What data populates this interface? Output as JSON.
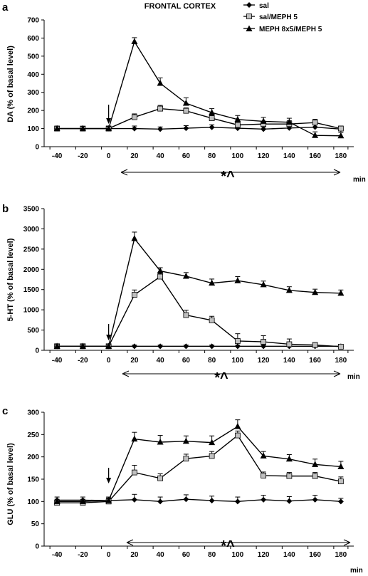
{
  "figure_title": "FRONTAL CORTEX",
  "legend": [
    {
      "label": "sal",
      "marker": "diamond",
      "color": "#000000"
    },
    {
      "label": "sal/MEPH 5",
      "marker": "square",
      "color": "#c0c0c0"
    },
    {
      "label": "MEPH 8x5/MEPH 5",
      "marker": "triangle",
      "color": "#000000"
    }
  ],
  "colors": {
    "line": "#000000",
    "open_marker": "#c0c0c0"
  },
  "chart_data": [
    {
      "type": "line",
      "panel": "a",
      "ylabel": "DA (% of basal level)",
      "xlabel": "min",
      "x": [
        -40,
        -20,
        0,
        20,
        40,
        60,
        80,
        100,
        120,
        140,
        160,
        180
      ],
      "xlim": [
        -50,
        190
      ],
      "ylim": [
        0,
        700
      ],
      "yticks": [
        0,
        100,
        200,
        300,
        400,
        500,
        600,
        700
      ],
      "injection_arrow_x": 0,
      "annotation": "*^",
      "series": [
        {
          "name": "sal",
          "marker": "diamond",
          "values": [
            100,
            100,
            100,
            100,
            97,
            102,
            107,
            102,
            97,
            103,
            108,
            97
          ],
          "errors": [
            13,
            12,
            12,
            14,
            12,
            14,
            14,
            12,
            12,
            12,
            14,
            12
          ]
        },
        {
          "name": "sal/MEPH 5",
          "marker": "square",
          "values": [
            100,
            100,
            100,
            163,
            210,
            198,
            157,
            120,
            125,
            125,
            133,
            100
          ],
          "errors": [
            13,
            12,
            14,
            18,
            18,
            16,
            16,
            16,
            16,
            18,
            18,
            14
          ]
        },
        {
          "name": "MEPH 8x5/MEPH 5",
          "marker": "triangle",
          "values": [
            100,
            100,
            100,
            580,
            350,
            240,
            188,
            150,
            140,
            135,
            62,
            60
          ],
          "errors": [
            13,
            12,
            12,
            22,
            30,
            30,
            22,
            22,
            22,
            22,
            20,
            18
          ]
        }
      ]
    },
    {
      "type": "line",
      "panel": "b",
      "ylabel": "5-HT (% of basal level)",
      "xlabel": "min",
      "x": [
        -40,
        -20,
        0,
        20,
        40,
        60,
        80,
        100,
        120,
        140,
        160,
        180
      ],
      "xlim": [
        -50,
        190
      ],
      "ylim": [
        0,
        3500
      ],
      "yticks": [
        0,
        500,
        1000,
        1500,
        2000,
        2500,
        3000,
        3500
      ],
      "injection_arrow_x": 0,
      "annotation": "*^",
      "series": [
        {
          "name": "sal",
          "marker": "diamond",
          "values": [
            100,
            100,
            100,
            100,
            100,
            100,
            100,
            100,
            100,
            100,
            100,
            100
          ],
          "errors": [
            40,
            40,
            40,
            30,
            30,
            30,
            30,
            30,
            30,
            30,
            30,
            30
          ]
        },
        {
          "name": "sal/MEPH 5",
          "marker": "square",
          "values": [
            100,
            100,
            100,
            1370,
            1820,
            870,
            740,
            230,
            210,
            150,
            130,
            90
          ],
          "errors": [
            40,
            40,
            40,
            120,
            80,
            120,
            100,
            180,
            150,
            130,
            60,
            40
          ]
        },
        {
          "name": "MEPH 8x5/MEPH 5",
          "marker": "triangle",
          "values": [
            100,
            100,
            100,
            2760,
            1960,
            1830,
            1660,
            1720,
            1620,
            1480,
            1430,
            1410
          ],
          "errors": [
            40,
            40,
            40,
            160,
            80,
            90,
            100,
            100,
            90,
            90,
            80,
            80
          ]
        }
      ]
    },
    {
      "type": "line",
      "panel": "c",
      "ylabel": "GLU (% of basal level)",
      "xlabel": "min",
      "x": [
        -40,
        -20,
        0,
        20,
        40,
        60,
        80,
        100,
        120,
        140,
        160,
        180
      ],
      "xlim": [
        -50,
        190
      ],
      "ylim": [
        0,
        300
      ],
      "yticks": [
        0,
        50,
        100,
        150,
        200,
        250,
        300
      ],
      "injection_arrow_x": 0,
      "annotation": "*^",
      "series": [
        {
          "name": "sal",
          "marker": "diamond",
          "values": [
            103,
            103,
            102,
            104,
            100,
            105,
            102,
            100,
            104,
            101,
            104,
            100
          ],
          "errors": [
            7,
            7,
            8,
            12,
            10,
            10,
            10,
            10,
            10,
            10,
            10,
            7
          ]
        },
        {
          "name": "sal/MEPH 5",
          "marker": "square",
          "values": [
            97,
            97,
            100,
            165,
            152,
            196,
            202,
            248,
            158,
            157,
            157,
            145
          ],
          "errors": [
            5,
            5,
            6,
            16,
            10,
            10,
            10,
            10,
            8,
            8,
            8,
            10
          ]
        },
        {
          "name": "MEPH 8x5/MEPH 5",
          "marker": "triangle",
          "values": [
            100,
            100,
            102,
            240,
            233,
            235,
            232,
            268,
            202,
            195,
            183,
            178
          ],
          "errors": [
            5,
            5,
            6,
            15,
            15,
            12,
            15,
            15,
            10,
            10,
            12,
            12
          ]
        }
      ]
    }
  ]
}
